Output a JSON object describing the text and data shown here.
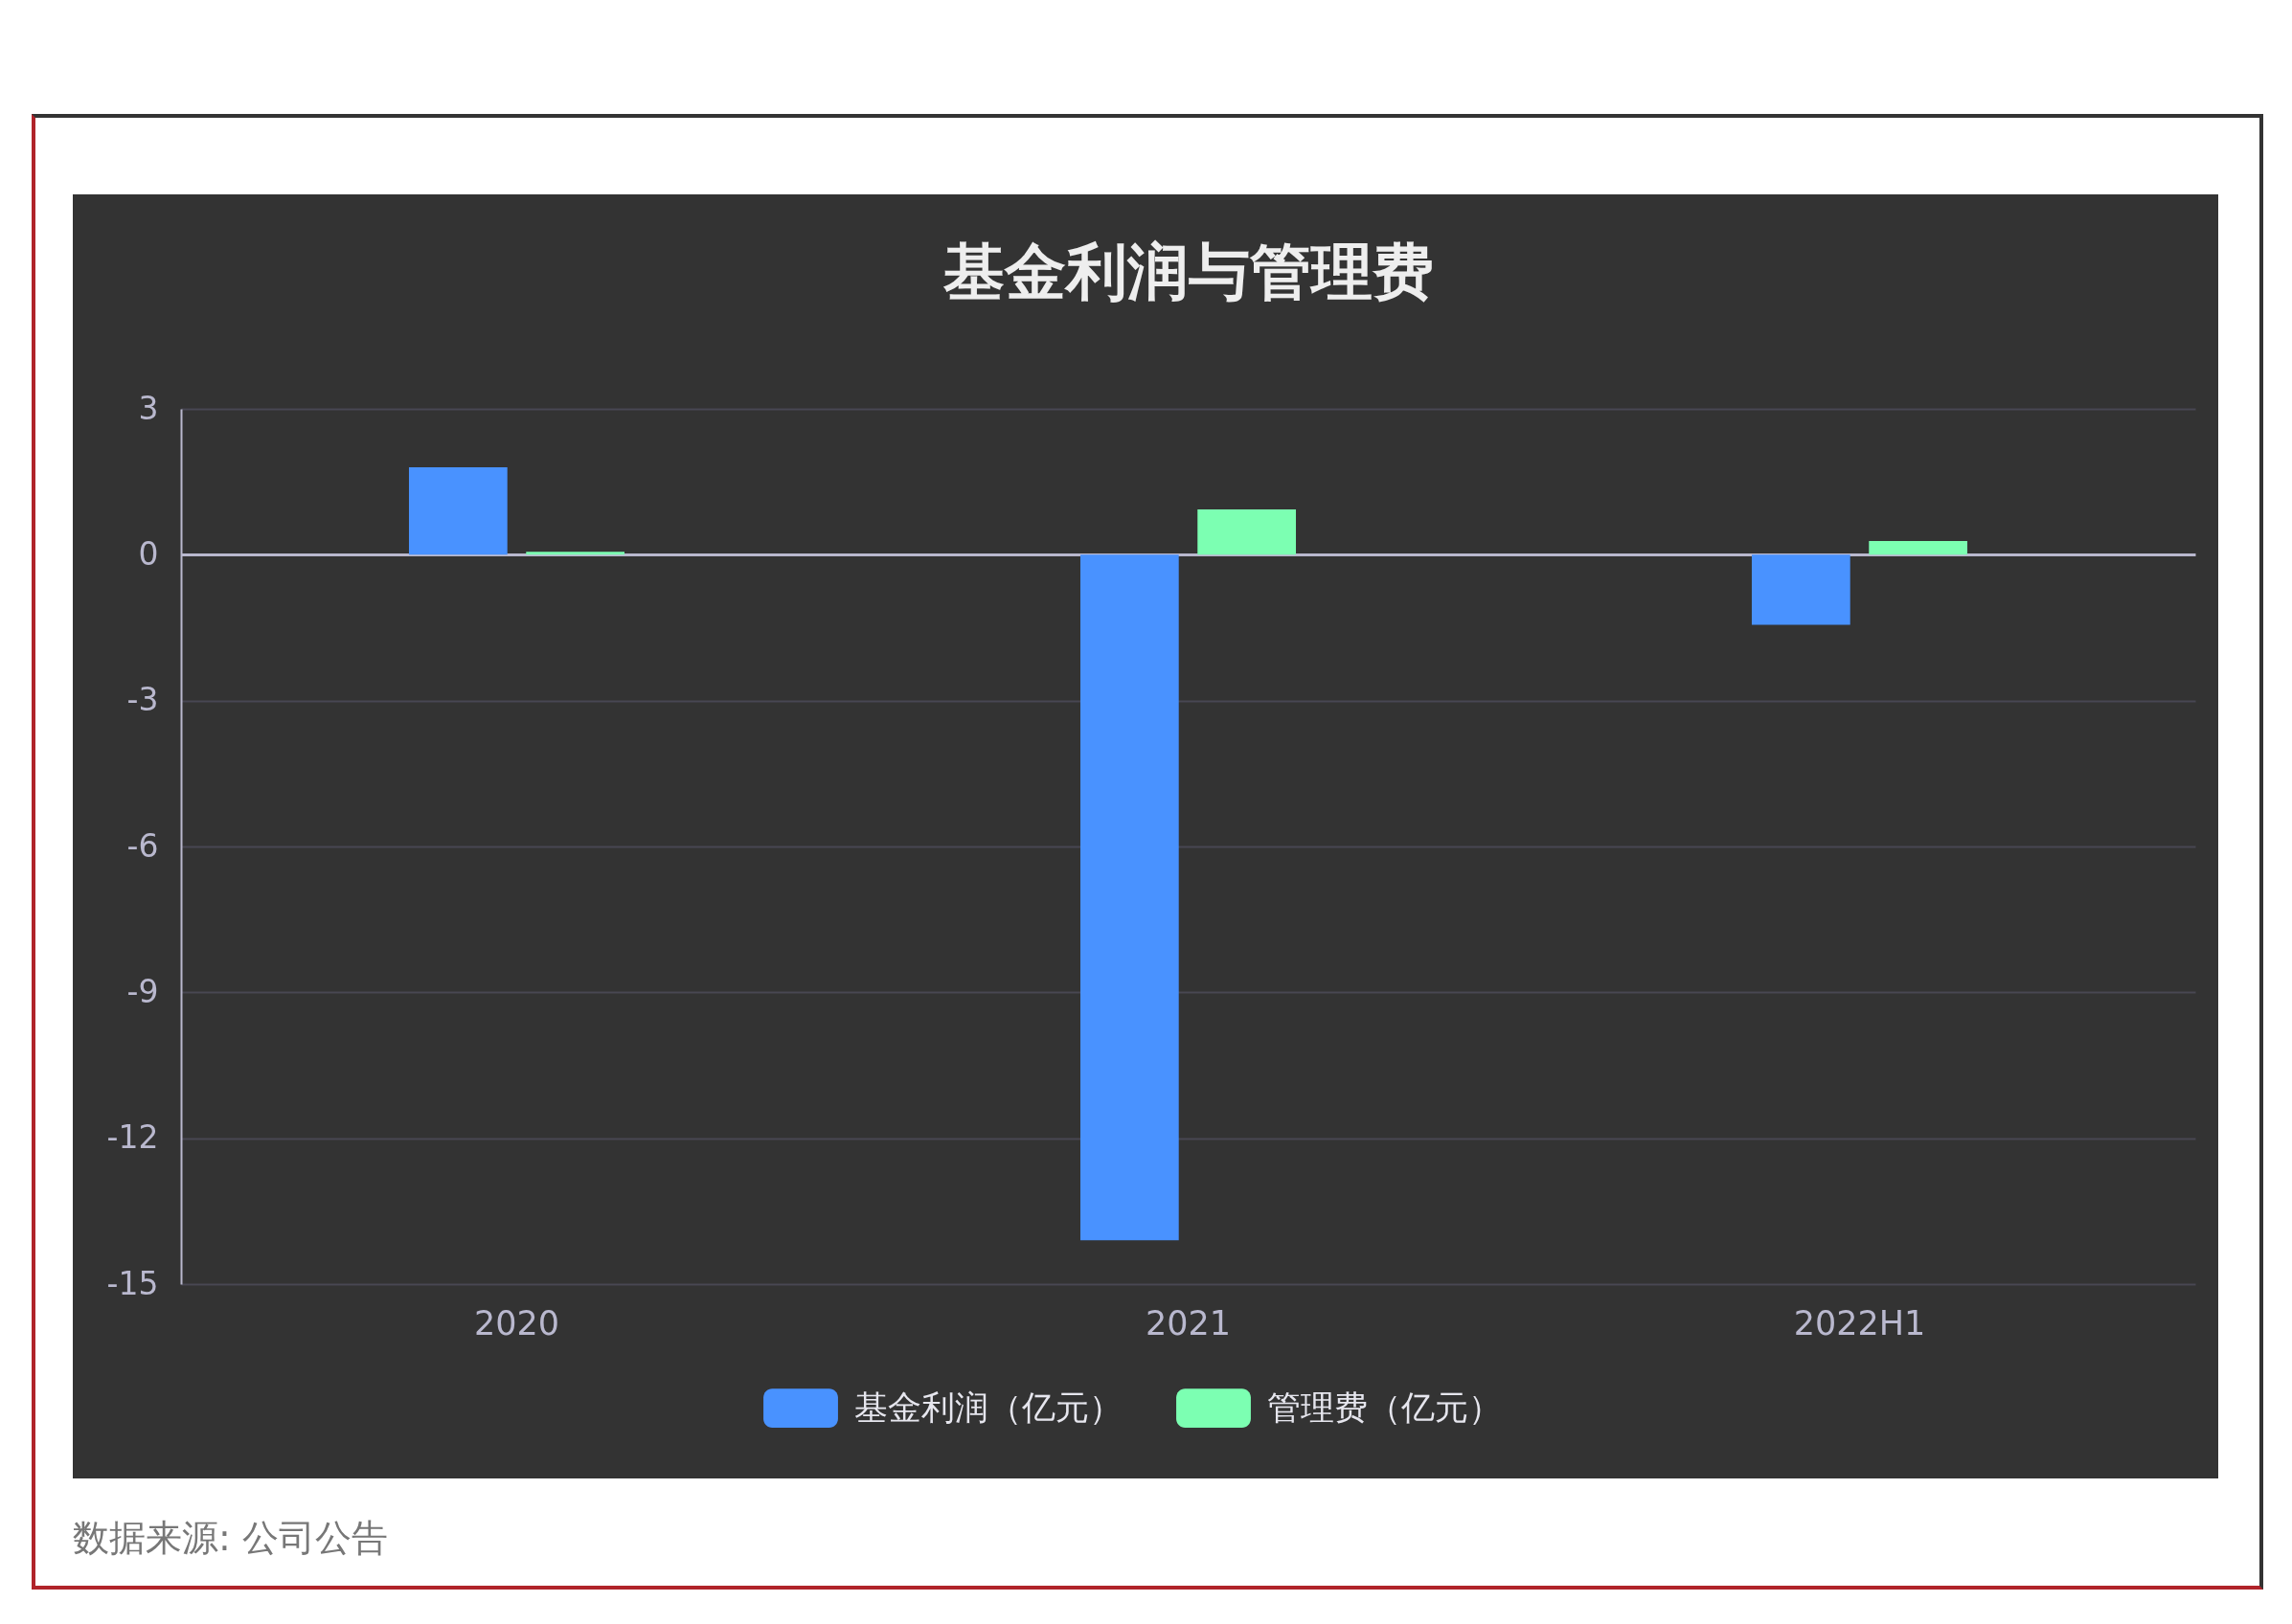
{
  "chart_data": {
    "type": "bar",
    "title": "基金利润与管理费",
    "categories": [
      "2020",
      "2021",
      "2022H1"
    ],
    "series": [
      {
        "name": "基金利润（亿元）",
        "color": "#4992ff",
        "values": [
          1.8,
          -14.1,
          -1.44
        ]
      },
      {
        "name": "管理费（亿元）",
        "color": "#7cffb2",
        "values": [
          0.06,
          0.93,
          0.28
        ]
      }
    ],
    "ylim": [
      -15,
      3
    ],
    "yticks": [
      -15,
      -12,
      -9,
      -6,
      -3,
      0,
      3
    ],
    "grid": "y",
    "legend": "bottom",
    "annotations": [
      "数据来源: 公司公告"
    ]
  }
}
